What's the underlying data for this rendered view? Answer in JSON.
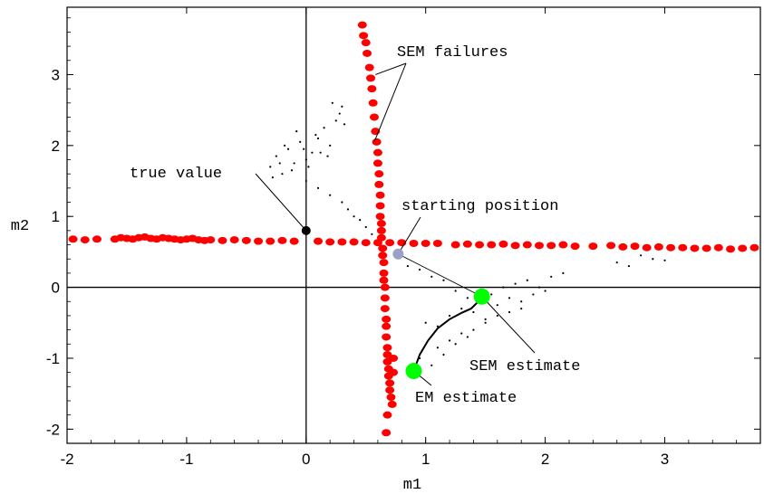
{
  "chart_data": {
    "type": "scatter",
    "title": "",
    "xlabel": "m1",
    "ylabel": "m2",
    "xlim": [
      -2.0,
      3.8
    ],
    "ylim": [
      -2.2,
      3.95
    ],
    "grid": false,
    "legend": "none",
    "xticks": [
      -2,
      -1,
      0,
      1,
      2,
      3
    ],
    "yticks": [
      -2,
      -1,
      0,
      1,
      2,
      3
    ],
    "xtick_labels": [
      "-2",
      "-1",
      "0",
      "1",
      "2",
      "3"
    ],
    "ytick_labels": [
      "-2",
      "-1",
      "0",
      "1",
      "2",
      "3"
    ],
    "colors": {
      "sem_failures": "#ff0000",
      "sampler_cloud": "#000000",
      "true_value": "#000000",
      "starting_position": "#9aa0c8",
      "em_estimate": "#00ff00",
      "sem_estimate": "#00ff00",
      "em_path": "#000000"
    },
    "points": {
      "true_value": {
        "x": 0.0,
        "y": 0.8
      },
      "starting_position": {
        "x": 0.77,
        "y": 0.47
      },
      "em_estimate": {
        "x": 0.9,
        "y": -1.18
      },
      "sem_estimate": {
        "x": 1.47,
        "y": -0.13
      }
    },
    "sem_failures_horizontal": {
      "x": [
        -1.95,
        -1.85,
        -1.75,
        -1.6,
        -1.55,
        -1.5,
        -1.45,
        -1.4,
        -1.35,
        -1.3,
        -1.25,
        -1.2,
        -1.15,
        -1.1,
        -1.05,
        -1.0,
        -0.95,
        -0.9,
        -0.85,
        -0.8,
        -0.7,
        -0.6,
        -0.5,
        -0.4,
        -0.3,
        -0.2,
        -0.1,
        0.1,
        0.2,
        0.3,
        0.4,
        0.5,
        0.6,
        0.7,
        0.8,
        0.9,
        1.0,
        1.1,
        1.25,
        1.35,
        1.45,
        1.55,
        1.65,
        1.75,
        1.85,
        1.95,
        2.05,
        2.15,
        2.25,
        2.4,
        2.55,
        2.65,
        2.75,
        2.85,
        2.95,
        3.05,
        3.15,
        3.25,
        3.35,
        3.45,
        3.55,
        3.65,
        3.75
      ],
      "y": [
        0.68,
        0.67,
        0.68,
        0.68,
        0.7,
        0.69,
        0.68,
        0.7,
        0.71,
        0.69,
        0.68,
        0.7,
        0.69,
        0.68,
        0.67,
        0.68,
        0.69,
        0.67,
        0.66,
        0.67,
        0.66,
        0.67,
        0.66,
        0.65,
        0.65,
        0.66,
        0.65,
        0.65,
        0.64,
        0.64,
        0.64,
        0.63,
        0.63,
        0.63,
        0.63,
        0.62,
        0.62,
        0.62,
        0.6,
        0.61,
        0.6,
        0.6,
        0.61,
        0.59,
        0.6,
        0.59,
        0.59,
        0.6,
        0.58,
        0.58,
        0.59,
        0.57,
        0.58,
        0.56,
        0.57,
        0.56,
        0.56,
        0.55,
        0.55,
        0.56,
        0.54,
        0.55,
        0.56
      ]
    },
    "sem_failures_vertical": {
      "x": [
        0.47,
        0.48,
        0.5,
        0.51,
        0.53,
        0.54,
        0.55,
        0.56,
        0.57,
        0.58,
        0.59,
        0.6,
        0.6,
        0.61,
        0.61,
        0.62,
        0.62,
        0.62,
        0.63,
        0.63,
        0.63,
        0.64,
        0.64,
        0.65,
        0.65,
        0.65,
        0.66,
        0.66,
        0.66,
        0.67,
        0.67,
        0.67,
        0.68,
        0.68,
        0.68,
        0.69,
        0.69,
        0.7,
        0.7,
        0.71,
        0.72,
        0.73,
        0.73,
        0.68,
        0.67
      ],
      "y": [
        3.7,
        3.55,
        3.45,
        3.3,
        3.1,
        2.95,
        2.8,
        2.6,
        2.4,
        2.2,
        2.05,
        1.9,
        1.75,
        1.6,
        1.45,
        1.3,
        1.15,
        1.0,
        0.9,
        0.8,
        0.7,
        0.55,
        0.45,
        0.35,
        0.2,
        0.1,
        0.0,
        -0.15,
        -0.3,
        -0.45,
        -0.55,
        -0.7,
        -0.85,
        -0.95,
        -1.05,
        -1.15,
        -1.25,
        -1.35,
        -1.45,
        -1.55,
        -1.65,
        -1.2,
        -1.0,
        -1.8,
        -2.05
      ]
    },
    "em_path": {
      "x": [
        0.9,
        0.95,
        1.02,
        1.1,
        1.2,
        1.3,
        1.38,
        1.44,
        1.47
      ],
      "y": [
        -1.18,
        -0.95,
        -0.75,
        -0.58,
        -0.45,
        -0.36,
        -0.3,
        -0.2,
        -0.13
      ]
    },
    "sampler_cloud_upper": {
      "x": [
        -0.3,
        -0.25,
        -0.2,
        -0.15,
        -0.1,
        -0.05,
        0.0,
        0.05,
        0.1,
        0.15,
        0.2,
        0.25,
        0.3,
        -0.28,
        -0.22,
        -0.12,
        -0.02,
        0.08,
        0.18,
        0.28,
        -0.18,
        -0.08,
        0.02,
        0.12,
        0.22,
        0.32,
        0.0,
        0.1,
        0.2,
        0.3,
        0.35,
        0.4,
        0.45,
        0.5,
        0.55
      ],
      "y": [
        1.7,
        1.85,
        1.6,
        1.95,
        1.75,
        2.05,
        1.8,
        1.9,
        2.1,
        2.25,
        2.0,
        2.35,
        2.55,
        1.55,
        1.75,
        1.65,
        1.95,
        2.15,
        1.85,
        2.45,
        2.0,
        2.2,
        1.7,
        1.9,
        2.6,
        2.3,
        1.5,
        1.4,
        1.3,
        1.2,
        1.1,
        1.0,
        0.95,
        0.85,
        0.75
      ]
    },
    "sampler_cloud_lower": {
      "x": [
        0.85,
        0.95,
        1.05,
        1.15,
        1.25,
        1.35,
        1.45,
        1.55,
        1.65,
        1.75,
        1.85,
        1.95,
        2.05,
        2.15,
        1.0,
        1.1,
        1.2,
        1.3,
        1.4,
        1.5,
        1.6,
        1.7,
        1.8,
        1.9,
        2.0,
        1.1,
        1.2,
        1.3,
        1.4,
        1.5,
        1.6,
        1.7,
        1.8,
        0.95,
        1.05,
        1.15,
        1.25,
        1.35,
        2.6,
        2.7,
        2.8,
        2.9,
        3.0
      ],
      "y": [
        0.3,
        0.25,
        0.15,
        0.1,
        -0.05,
        -0.15,
        -0.2,
        -0.1,
        0.0,
        0.05,
        0.1,
        0.0,
        0.15,
        0.2,
        -0.5,
        -0.55,
        -0.4,
        -0.3,
        -0.35,
        -0.45,
        -0.25,
        -0.15,
        -0.2,
        -0.1,
        -0.05,
        -0.85,
        -0.75,
        -0.65,
        -0.6,
        -0.5,
        -0.4,
        -0.35,
        -0.3,
        -1.0,
        -1.1,
        -0.95,
        -0.8,
        -0.7,
        0.35,
        0.3,
        0.45,
        0.4,
        0.38
      ]
    },
    "annotations": [
      {
        "text": "SEM failures",
        "targets": [
          {
            "x": 0.58,
            "y": 3.0
          },
          {
            "x": 0.57,
            "y": 2.05
          }
        ]
      },
      {
        "text": "true value",
        "targets": [
          {
            "x": 0.0,
            "y": 0.8
          }
        ]
      },
      {
        "text": "starting position",
        "targets": [
          {
            "x": 0.77,
            "y": 0.47
          }
        ]
      },
      {
        "text": "SEM estimate",
        "targets": [
          {
            "x": 1.47,
            "y": -0.13
          }
        ]
      },
      {
        "text": "EM estimate",
        "targets": [
          {
            "x": 0.9,
            "y": -1.18
          }
        ]
      }
    ]
  }
}
